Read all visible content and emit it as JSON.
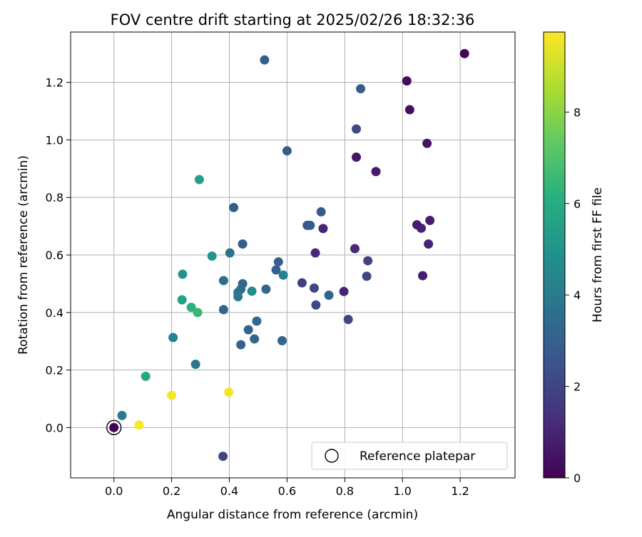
{
  "chart_data": {
    "type": "scatter",
    "title": "FOV centre drift starting at 2025/02/26 18:32:36",
    "xlabel": "Angular distance from reference (arcmin)",
    "ylabel": "Rotation from reference (arcmin)",
    "xlim": [
      -0.15,
      1.39
    ],
    "ylim": [
      -0.175,
      1.375
    ],
    "xticks": [
      "0.0",
      "0.2",
      "0.4",
      "0.6",
      "0.8",
      "1.0",
      "1.2"
    ],
    "xtick_values": [
      0.0,
      0.2,
      0.4,
      0.6,
      0.8,
      1.0,
      1.2
    ],
    "yticks": [
      "0.0",
      "0.2",
      "0.4",
      "0.6",
      "0.8",
      "1.0",
      "1.2"
    ],
    "ytick_values": [
      0.0,
      0.2,
      0.4,
      0.6,
      0.8,
      1.0,
      1.2
    ],
    "grid": true,
    "colormap": "viridis",
    "colorbar": {
      "label": "Hours from first FF file",
      "range": [
        0,
        9.75
      ],
      "ticks": [
        "0",
        "2",
        "4",
        "6",
        "8"
      ],
      "tick_values": [
        0,
        2,
        4,
        6,
        8
      ]
    },
    "legend": {
      "placement": "lower-right",
      "entries": [
        {
          "label": "Reference platepar",
          "marker": "open-circle"
        }
      ]
    },
    "reference_point": {
      "x": 0.0,
      "y": 0.0
    },
    "points": [
      {
        "x": 0.0,
        "y": 0.0,
        "c": 0.05
      },
      {
        "x": 1.215,
        "y": 1.3,
        "c": 0.2
      },
      {
        "x": 1.015,
        "y": 1.205,
        "c": 0.3
      },
      {
        "x": 1.025,
        "y": 1.105,
        "c": 0.4
      },
      {
        "x": 1.085,
        "y": 0.988,
        "c": 0.5
      },
      {
        "x": 0.84,
        "y": 0.94,
        "c": 0.6
      },
      {
        "x": 0.908,
        "y": 0.89,
        "c": 0.7
      },
      {
        "x": 1.095,
        "y": 0.72,
        "c": 0.8
      },
      {
        "x": 1.05,
        "y": 0.705,
        "c": 0.85
      },
      {
        "x": 1.065,
        "y": 0.693,
        "c": 0.9
      },
      {
        "x": 0.725,
        "y": 0.692,
        "c": 1.0
      },
      {
        "x": 1.09,
        "y": 0.638,
        "c": 1.0
      },
      {
        "x": 0.835,
        "y": 0.622,
        "c": 1.1
      },
      {
        "x": 0.698,
        "y": 0.607,
        "c": 1.2
      },
      {
        "x": 1.07,
        "y": 0.528,
        "c": 0.8
      },
      {
        "x": 0.797,
        "y": 0.473,
        "c": 1.0
      },
      {
        "x": 0.88,
        "y": 0.58,
        "c": 1.9
      },
      {
        "x": 0.876,
        "y": 0.526,
        "c": 2.0
      },
      {
        "x": 0.652,
        "y": 0.503,
        "c": 1.8
      },
      {
        "x": 0.694,
        "y": 0.485,
        "c": 2.0
      },
      {
        "x": 0.7,
        "y": 0.426,
        "c": 2.1
      },
      {
        "x": 0.812,
        "y": 0.376,
        "c": 2.0
      },
      {
        "x": 0.378,
        "y": -0.1,
        "c": 2.0
      },
      {
        "x": 0.522,
        "y": 1.278,
        "c": 3.0
      },
      {
        "x": 0.855,
        "y": 1.178,
        "c": 2.8
      },
      {
        "x": 0.84,
        "y": 1.038,
        "c": 2.2
      },
      {
        "x": 0.6,
        "y": 0.962,
        "c": 2.8
      },
      {
        "x": 0.415,
        "y": 0.765,
        "c": 2.9
      },
      {
        "x": 0.718,
        "y": 0.75,
        "c": 2.7
      },
      {
        "x": 0.67,
        "y": 0.703,
        "c": 2.6
      },
      {
        "x": 0.68,
        "y": 0.703,
        "c": 2.7
      },
      {
        "x": 0.446,
        "y": 0.638,
        "c": 2.9
      },
      {
        "x": 0.57,
        "y": 0.576,
        "c": 3.0
      },
      {
        "x": 0.562,
        "y": 0.548,
        "c": 3.1
      },
      {
        "x": 0.745,
        "y": 0.46,
        "c": 3.2
      },
      {
        "x": 0.527,
        "y": 0.481,
        "c": 3.2
      },
      {
        "x": 0.446,
        "y": 0.5,
        "c": 3.3
      },
      {
        "x": 0.44,
        "y": 0.481,
        "c": 3.4
      },
      {
        "x": 0.43,
        "y": 0.47,
        "c": 3.5
      },
      {
        "x": 0.43,
        "y": 0.455,
        "c": 3.9
      },
      {
        "x": 0.38,
        "y": 0.41,
        "c": 3.2
      },
      {
        "x": 0.495,
        "y": 0.37,
        "c": 3.3
      },
      {
        "x": 0.466,
        "y": 0.34,
        "c": 3.1
      },
      {
        "x": 0.487,
        "y": 0.308,
        "c": 3.2
      },
      {
        "x": 0.583,
        "y": 0.302,
        "c": 3.2
      },
      {
        "x": 0.44,
        "y": 0.288,
        "c": 3.1
      },
      {
        "x": 0.38,
        "y": 0.511,
        "c": 3.5
      },
      {
        "x": 0.402,
        "y": 0.607,
        "c": 3.7
      },
      {
        "x": 0.283,
        "y": 0.22,
        "c": 3.8
      },
      {
        "x": 0.028,
        "y": 0.042,
        "c": 4.0
      },
      {
        "x": 0.205,
        "y": 0.313,
        "c": 4.2
      },
      {
        "x": 0.587,
        "y": 0.53,
        "c": 4.3
      },
      {
        "x": 0.478,
        "y": 0.474,
        "c": 4.8
      },
      {
        "x": 0.34,
        "y": 0.596,
        "c": 5.1
      },
      {
        "x": 0.238,
        "y": 0.533,
        "c": 5.0
      },
      {
        "x": 0.296,
        "y": 0.862,
        "c": 5.5
      },
      {
        "x": 0.236,
        "y": 0.444,
        "c": 5.5
      },
      {
        "x": 0.11,
        "y": 0.178,
        "c": 5.8
      },
      {
        "x": 0.268,
        "y": 0.418,
        "c": 6.2
      },
      {
        "x": 0.29,
        "y": 0.4,
        "c": 6.5
      },
      {
        "x": 0.2,
        "y": 0.112,
        "c": 9.6
      },
      {
        "x": 0.398,
        "y": 0.123,
        "c": 9.6
      },
      {
        "x": 0.087,
        "y": 0.009,
        "c": 9.7
      }
    ]
  }
}
